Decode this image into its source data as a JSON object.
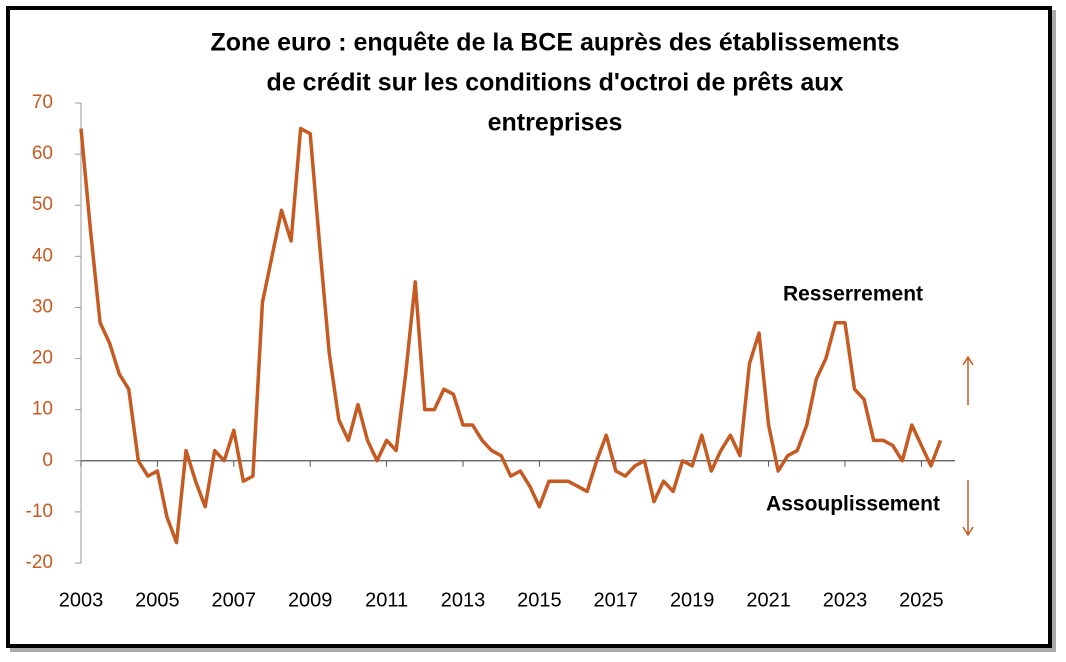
{
  "chart_data": {
    "type": "line",
    "title": [
      "Zone euro : enquête de la BCE auprès des établissements",
      "de crédit sur les conditions d'octroi de prêts aux",
      "entreprises"
    ],
    "annotations": [
      "Resserrement",
      "Assouplissement"
    ],
    "x": [
      2003,
      2003.25,
      2003.5,
      2003.75,
      2004,
      2004.25,
      2004.5,
      2004.75,
      2005,
      2005.25,
      2005.5,
      2005.75,
      2006,
      2006.25,
      2006.5,
      2006.75,
      2007,
      2007.25,
      2007.5,
      2007.75,
      2008,
      2008.25,
      2008.5,
      2008.75,
      2009,
      2009.25,
      2009.5,
      2009.75,
      2010,
      2010.25,
      2010.5,
      2010.75,
      2011,
      2011.25,
      2011.5,
      2011.75,
      2012,
      2012.25,
      2012.5,
      2012.75,
      2013,
      2013.25,
      2013.5,
      2013.75,
      2014,
      2014.25,
      2014.5,
      2014.75,
      2015,
      2015.25,
      2015.5,
      2015.75,
      2016,
      2016.25,
      2016.5,
      2016.75,
      2017,
      2017.25,
      2017.5,
      2017.75,
      2018,
      2018.25,
      2018.5,
      2018.75,
      2019,
      2019.25,
      2019.5,
      2019.75,
      2020,
      2020.25,
      2020.5,
      2020.75,
      2021,
      2021.25,
      2021.5,
      2021.75,
      2022,
      2022.25,
      2022.5,
      2022.75,
      2023,
      2023.25,
      2023.5,
      2023.75,
      2024,
      2024.25,
      2024.5,
      2024.75,
      2025,
      2025.25,
      2025.5
    ],
    "series": [
      {
        "color": "#c55a22",
        "values": [
          65,
          45,
          27,
          23,
          17,
          14,
          0,
          -3,
          -2,
          -11,
          -16,
          2,
          -4,
          -9,
          2,
          0,
          6,
          -4,
          -3,
          31,
          40,
          49,
          43,
          65,
          64,
          42,
          21,
          8,
          4,
          11,
          4,
          0,
          4,
          2,
          17,
          35,
          10,
          10,
          14,
          13,
          7,
          7,
          4,
          2,
          1,
          -3,
          -2,
          -5,
          -9,
          -4,
          -4,
          -4,
          -5,
          -6,
          0,
          5,
          -2,
          -3,
          -1,
          0,
          -8,
          -4,
          -6,
          0,
          -1,
          5,
          -2,
          2,
          5,
          1,
          19,
          25,
          7,
          -2,
          1,
          2,
          7,
          16,
          20,
          27,
          27,
          14,
          12,
          4,
          4,
          3,
          0,
          7,
          3,
          -1,
          4
        ]
      }
    ],
    "xlim": [
      2003,
      2025.88
    ],
    "xticks": [
      2003,
      2005,
      2007,
      2009,
      2011,
      2013,
      2015,
      2017,
      2019,
      2021,
      2023,
      2025
    ],
    "ylim": [
      -20,
      70
    ],
    "yticks": [
      -20,
      -10,
      0,
      10,
      20,
      30,
      40,
      50,
      60,
      70
    ]
  }
}
